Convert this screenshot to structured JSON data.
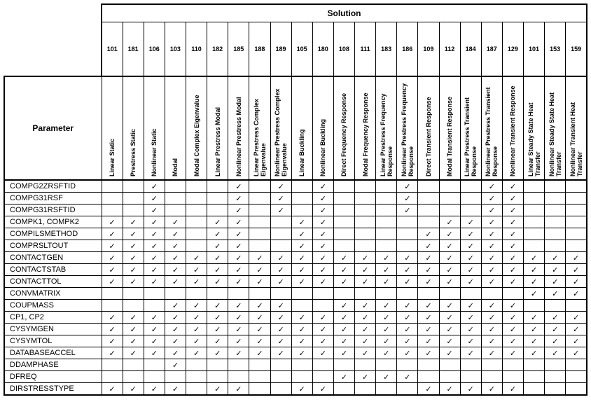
{
  "header": {
    "solution_label": "Solution",
    "parameter_label": "Parameter"
  },
  "check_symbol": "✓",
  "columns": [
    {
      "num": "101",
      "name": "Linear Static"
    },
    {
      "num": "181",
      "name": "Prestress Static"
    },
    {
      "num": "106",
      "name": "Nonlinear Static"
    },
    {
      "num": "103",
      "name": "Modal"
    },
    {
      "num": "110",
      "name": "Modal Complex Eigenvalue"
    },
    {
      "num": "182",
      "name": "Linear Prestress Modal"
    },
    {
      "num": "185",
      "name": "Nonlinear Prestress Modal"
    },
    {
      "num": "188",
      "name": "Linear Prestress Complex Eigenvalue"
    },
    {
      "num": "189",
      "name": "Nonlinear Prestress Complex Eigenvalue"
    },
    {
      "num": "105",
      "name": "Linear Buckling"
    },
    {
      "num": "180",
      "name": "Nonlinear Buckling"
    },
    {
      "num": "108",
      "name": "Direct Frequency Response"
    },
    {
      "num": "111",
      "name": "Modal Frequency Response"
    },
    {
      "num": "183",
      "name": "Linear Prestress Frequency Response"
    },
    {
      "num": "186",
      "name": "Nonlinear Prestress Frequency Response"
    },
    {
      "num": "109",
      "name": "Direct Transient Response"
    },
    {
      "num": "112",
      "name": "Modal Transient Response"
    },
    {
      "num": "184",
      "name": "Linear Prestress Transient Response"
    },
    {
      "num": "187",
      "name": "Nonlinear Prestress Transient Response"
    },
    {
      "num": "129",
      "name": "Nonlinear Transient Response"
    },
    {
      "num": "101",
      "name": "Linear Steady State Heat Transfer"
    },
    {
      "num": "153",
      "name": "Nonlinear Steady State Heat Transfer"
    },
    {
      "num": "159",
      "name": "Nonlinear Transient Heat Transfer"
    }
  ],
  "rows": [
    {
      "param": "COMPG2ZRSFTID",
      "checks": "00100010101000100011000"
    },
    {
      "param": "COMPG31RSF",
      "checks": "00100010101000100011000"
    },
    {
      "param": "COMPG31RSFTID",
      "checks": "00100010101000100011000"
    },
    {
      "param": "COMPK1, COMPK2",
      "checks": "11110110011000001111000"
    },
    {
      "param": "COMPILSMETHOD",
      "checks": "11110110011000011111000"
    },
    {
      "param": "COMPRSLTOUT",
      "checks": "11110110011000011111000"
    },
    {
      "param": "CONTACTGEN",
      "checks": "11111111111111111111111"
    },
    {
      "param": "CONTACTSTAB",
      "checks": "11111111111111111111111"
    },
    {
      "param": "CONTACTTOL",
      "checks": "11111111111111111111111"
    },
    {
      "param": "CONVMATRIX",
      "checks": "00000000000000000000111"
    },
    {
      "param": "COUPMASS",
      "checks": "00011111100111111111000"
    },
    {
      "param": "CP1, CP2",
      "checks": "11111111111111111111111"
    },
    {
      "param": "CYSYMGEN",
      "checks": "11111111111111111111111"
    },
    {
      "param": "CYSYMTOL",
      "checks": "11111111111111111111111"
    },
    {
      "param": "DATABASEACCEL",
      "checks": "11111111111111111111111"
    },
    {
      "param": "DDAMPHASE",
      "checks": "00010000000000000000000"
    },
    {
      "param": "DFREQ",
      "checks": "00000000000111100000000"
    },
    {
      "param": "DIRSTRESSTYPE",
      "checks": "11110110011000011111000"
    }
  ]
}
